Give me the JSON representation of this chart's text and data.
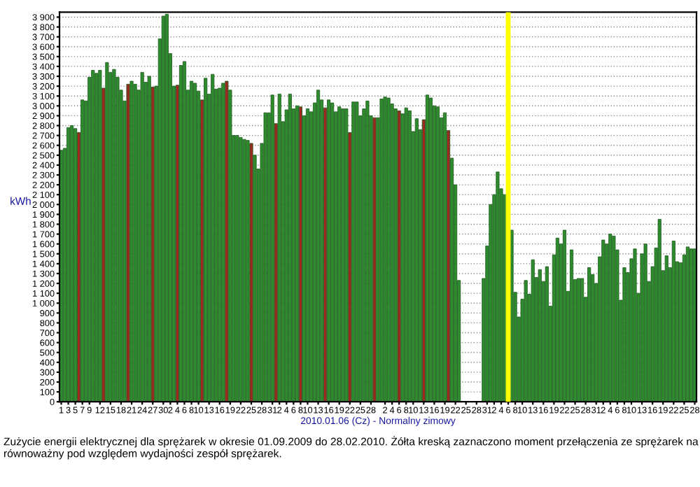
{
  "chart_data": {
    "type": "bar",
    "xlabel": "2010.01.06 (Cz) - Normalny zimowy",
    "ylabel": "kWh",
    "annotations": [
      "Zużycie energii elektrycznej dla sprężarek w okresie 01.09.2009 do 28.02.2010. Żółta kreską zaznaczono moment przełączenia ze sprężarek na równoważny pod względem wydajności zespół sprężarek."
    ],
    "x": [
      "2009-09-01",
      "2009-09-02",
      "2009-09-03",
      "2009-09-04",
      "2009-09-05",
      "2009-09-06",
      "2009-09-07",
      "2009-09-08",
      "2009-09-09",
      "2009-09-10",
      "2009-09-11",
      "2009-09-12",
      "2009-09-13",
      "2009-09-14",
      "2009-09-15",
      "2009-09-16",
      "2009-09-17",
      "2009-09-18",
      "2009-09-19",
      "2009-09-20",
      "2009-09-21",
      "2009-09-22",
      "2009-09-23",
      "2009-09-24",
      "2009-09-25",
      "2009-09-26",
      "2009-09-27",
      "2009-09-28",
      "2009-09-29",
      "2009-09-30",
      "2009-10-01",
      "2009-10-02",
      "2009-10-03",
      "2009-10-04",
      "2009-10-05",
      "2009-10-06",
      "2009-10-07",
      "2009-10-08",
      "2009-10-09",
      "2009-10-10",
      "2009-10-11",
      "2009-10-12",
      "2009-10-13",
      "2009-10-14",
      "2009-10-15",
      "2009-10-16",
      "2009-10-17",
      "2009-10-18",
      "2009-10-19",
      "2009-10-20",
      "2009-10-21",
      "2009-10-22",
      "2009-10-23",
      "2009-10-24",
      "2009-10-25",
      "2009-10-26",
      "2009-10-27",
      "2009-10-28",
      "2009-10-29",
      "2009-10-30",
      "2009-10-31",
      "2009-11-01",
      "2009-11-02",
      "2009-11-03",
      "2009-11-04",
      "2009-11-05",
      "2009-11-06",
      "2009-11-07",
      "2009-11-08",
      "2009-11-09",
      "2009-11-10",
      "2009-11-11",
      "2009-11-12",
      "2009-11-13",
      "2009-11-14",
      "2009-11-15",
      "2009-11-16",
      "2009-11-17",
      "2009-11-18",
      "2009-11-19",
      "2009-11-20",
      "2009-11-21",
      "2009-11-22",
      "2009-11-23",
      "2009-11-24",
      "2009-11-25",
      "2009-11-26",
      "2009-11-27",
      "2009-11-28",
      "2009-11-29",
      "2009-11-30",
      "2009-12-01",
      "2009-12-02",
      "2009-12-03",
      "2009-12-04",
      "2009-12-05",
      "2009-12-06",
      "2009-12-07",
      "2009-12-08",
      "2009-12-09",
      "2009-12-10",
      "2009-12-11",
      "2009-12-12",
      "2009-12-13",
      "2009-12-14",
      "2009-12-15",
      "2009-12-16",
      "2009-12-17",
      "2009-12-18",
      "2009-12-19",
      "2009-12-20",
      "2009-12-21",
      "2009-12-22",
      "2009-12-23",
      "2009-12-24",
      "2009-12-25",
      "2009-12-26",
      "2009-12-27",
      "2009-12-28",
      "2009-12-29",
      "2009-12-30",
      "2009-12-31",
      "2010-01-01",
      "2010-01-02",
      "2010-01-03",
      "2010-01-04",
      "2010-01-05",
      "2010-01-06",
      "2010-01-07",
      "2010-01-08",
      "2010-01-09",
      "2010-01-10",
      "2010-01-11",
      "2010-01-12",
      "2010-01-13",
      "2010-01-14",
      "2010-01-15",
      "2010-01-16",
      "2010-01-17",
      "2010-01-18",
      "2010-01-19",
      "2010-01-20",
      "2010-01-21",
      "2010-01-22",
      "2010-01-23",
      "2010-01-24",
      "2010-01-25",
      "2010-01-26",
      "2010-01-27",
      "2010-01-28",
      "2010-01-29",
      "2010-01-30",
      "2010-01-31",
      "2010-02-01",
      "2010-02-02",
      "2010-02-03",
      "2010-02-04",
      "2010-02-05",
      "2010-02-06",
      "2010-02-07",
      "2010-02-08",
      "2010-02-09",
      "2010-02-10",
      "2010-02-11",
      "2010-02-12",
      "2010-02-13",
      "2010-02-14",
      "2010-02-15",
      "2010-02-16",
      "2010-02-17",
      "2010-02-18",
      "2010-02-19",
      "2010-02-20",
      "2010-02-21",
      "2010-02-22",
      "2010-02-23",
      "2010-02-24",
      "2010-02-25",
      "2010-02-26",
      "2010-02-27",
      "2010-02-28"
    ],
    "values": [
      2550,
      2570,
      2780,
      2800,
      2770,
      2730,
      3060,
      3050,
      3290,
      3360,
      3330,
      3360,
      3180,
      3440,
      3340,
      3370,
      3290,
      3160,
      3050,
      3220,
      3250,
      3220,
      3160,
      3340,
      3240,
      3300,
      3190,
      3200,
      3680,
      3910,
      3930,
      3530,
      3200,
      3210,
      3410,
      3450,
      3160,
      3250,
      3230,
      3150,
      3060,
      3280,
      3120,
      3320,
      3170,
      3180,
      3230,
      3250,
      3160,
      2700,
      2700,
      2680,
      2660,
      2650,
      2620,
      2500,
      2360,
      2620,
      2930,
      2930,
      3110,
      2820,
      3120,
      2840,
      2960,
      3120,
      2970,
      3000,
      2990,
      2900,
      2970,
      2940,
      3030,
      3160,
      3060,
      2980,
      3060,
      3030,
      2940,
      2990,
      2970,
      2970,
      2730,
      3040,
      3040,
      2900,
      2970,
      3050,
      2900,
      2880,
      2880,
      3070,
      3090,
      3080,
      3020,
      2970,
      2950,
      2920,
      2980,
      2950,
      2740,
      2870,
      2760,
      2860,
      3110,
      3080,
      3000,
      2990,
      2880,
      2930,
      2750,
      2470,
      2200,
      1230,
      null,
      null,
      null,
      null,
      null,
      null,
      1250,
      1580,
      2000,
      2100,
      2330,
      2160,
      2100,
      null,
      1740,
      1110,
      860,
      1040,
      1230,
      1090,
      1440,
      1260,
      1340,
      1220,
      1370,
      970,
      1490,
      1660,
      1600,
      1740,
      1120,
      1540,
      1240,
      1250,
      1250,
      1060,
      1360,
      1290,
      1200,
      1470,
      1640,
      1600,
      1700,
      1680,
      1540,
      1030,
      1360,
      1310,
      1450,
      1550,
      1100,
      1500,
      1600,
      1220,
      1370,
      1560,
      1850,
      1330,
      1480,
      1360,
      1630,
      1420,
      1410,
      1490,
      1570,
      1550,
      1550
    ],
    "colors": [
      "#2e8b2e",
      "#2e8b2e",
      "#2e8b2e",
      "#2e8b2e",
      "#2e8b2e",
      "#9b2a1e",
      "#2e8b2e",
      "#2e8b2e",
      "#2e8b2e",
      "#2e8b2e",
      "#2e8b2e",
      "#2e8b2e",
      "#9b2a1e",
      "#2e8b2e",
      "#2e8b2e",
      "#2e8b2e",
      "#2e8b2e",
      "#2e8b2e",
      "#2e8b2e",
      "#9b2a1e",
      "#2e8b2e",
      "#2e8b2e",
      "#2e8b2e",
      "#2e8b2e",
      "#2e8b2e",
      "#2e8b2e",
      "#9b2a1e",
      "#2e8b2e",
      "#2e8b2e",
      "#2e8b2e",
      "#2e8b2e",
      "#2e8b2e",
      "#2e8b2e",
      "#9b2a1e",
      "#2e8b2e",
      "#2e8b2e",
      "#2e8b2e",
      "#2e8b2e",
      "#2e8b2e",
      "#2e8b2e",
      "#9b2a1e",
      "#2e8b2e",
      "#2e8b2e",
      "#2e8b2e",
      "#2e8b2e",
      "#2e8b2e",
      "#2e8b2e",
      "#9b2a1e",
      "#2e8b2e",
      "#2e8b2e",
      "#2e8b2e",
      "#2e8b2e",
      "#2e8b2e",
      "#2e8b2e",
      "#9b2a1e",
      "#2e8b2e",
      "#2e8b2e",
      "#2e8b2e",
      "#2e8b2e",
      "#2e8b2e",
      "#2e8b2e",
      "#9b2a1e",
      "#2e8b2e",
      "#2e8b2e",
      "#2e8b2e",
      "#2e8b2e",
      "#2e8b2e",
      "#2e8b2e",
      "#9b2a1e",
      "#2e8b2e",
      "#2e8b2e",
      "#2e8b2e",
      "#2e8b2e",
      "#2e8b2e",
      "#2e8b2e",
      "#9b2a1e",
      "#2e8b2e",
      "#2e8b2e",
      "#2e8b2e",
      "#2e8b2e",
      "#2e8b2e",
      "#2e8b2e",
      "#9b2a1e",
      "#2e8b2e",
      "#2e8b2e",
      "#2e8b2e",
      "#2e8b2e",
      "#2e8b2e",
      "#2e8b2e",
      "#9b2a1e",
      "#2e8b2e",
      "#2e8b2e",
      "#2e8b2e",
      "#2e8b2e",
      "#2e8b2e",
      "#2e8b2e",
      "#9b2a1e",
      "#2e8b2e",
      "#2e8b2e",
      "#2e8b2e",
      "#2e8b2e",
      "#2e8b2e",
      "#2e8b2e",
      "#9b2a1e",
      "#2e8b2e",
      "#2e8b2e",
      "#2e8b2e",
      "#2e8b2e",
      "#2e8b2e",
      "#2e8b2e",
      "#9b2a1e",
      "#2e8b2e",
      "#2e8b2e",
      "#2e8b2e",
      "#2e8b2e",
      "#2e8b2e",
      "#2e8b2e",
      "#2e8b2e",
      "#2e8b2e",
      "#2e8b2e",
      "#2e8b2e",
      "#2e8b2e",
      "#2e8b2e",
      "#2e8b2e",
      "#2e8b2e",
      "#2e8b2e",
      "#2e8b2e",
      "#2e8b2e",
      "#2e8b2e",
      "#2e8b2e",
      "#2e8b2e",
      "#2e8b2e",
      "#2e8b2e",
      "#2e8b2e",
      "#2e8b2e",
      "#2e8b2e",
      "#2e8b2e",
      "#2e8b2e",
      "#2e8b2e",
      "#2e8b2e",
      "#2e8b2e",
      "#2e8b2e",
      "#2e8b2e",
      "#2e8b2e",
      "#2e8b2e",
      "#2e8b2e",
      "#2e8b2e",
      "#2e8b2e",
      "#2e8b2e",
      "#2e8b2e",
      "#2e8b2e",
      "#2e8b2e",
      "#2e8b2e",
      "#2e8b2e",
      "#2e8b2e",
      "#2e8b2e",
      "#2e8b2e",
      "#2e8b2e",
      "#2e8b2e",
      "#2e8b2e",
      "#2e8b2e",
      "#2e8b2e",
      "#2e8b2e",
      "#2e8b2e",
      "#2e8b2e",
      "#2e8b2e",
      "#2e8b2e",
      "#2e8b2e",
      "#2e8b2e",
      "#2e8b2e",
      "#2e8b2e",
      "#2e8b2e",
      "#2e8b2e",
      "#2e8b2e",
      "#2e8b2e",
      "#2e8b2e",
      "#2e8b2e",
      "#2e8b2e",
      "#2e8b2e",
      "#2e8b2e",
      "#2e8b2e"
    ],
    "xlim": [
      "2009-08-31T12:00",
      "2010-02-28T12:00"
    ],
    "xticks": [
      {
        "value": "2009-09-01",
        "label": "1"
      },
      {
        "value": "2009-09-03",
        "label": "3"
      },
      {
        "value": "2009-09-05",
        "label": "5"
      },
      {
        "value": "2009-09-07",
        "label": "7"
      },
      {
        "value": "2009-09-09",
        "label": "9"
      },
      {
        "value": "2009-09-12",
        "label": "12"
      },
      {
        "value": "2009-09-15",
        "label": "15"
      },
      {
        "value": "2009-09-18",
        "label": "18"
      },
      {
        "value": "2009-09-21",
        "label": "21"
      },
      {
        "value": "2009-09-24",
        "label": "24"
      },
      {
        "value": "2009-09-27",
        "label": "27"
      },
      {
        "value": "2009-09-30",
        "label": "30"
      },
      {
        "value": "2009-10-02",
        "label": "2"
      },
      {
        "value": "2009-10-04",
        "label": "4"
      },
      {
        "value": "2009-10-06",
        "label": "6"
      },
      {
        "value": "2009-10-08",
        "label": "8"
      },
      {
        "value": "2009-10-10",
        "label": "10"
      },
      {
        "value": "2009-10-13",
        "label": "13"
      },
      {
        "value": "2009-10-16",
        "label": "16"
      },
      {
        "value": "2009-10-19",
        "label": "19"
      },
      {
        "value": "2009-10-22",
        "label": "22"
      },
      {
        "value": "2009-10-25",
        "label": "25"
      },
      {
        "value": "2009-10-28",
        "label": "28"
      },
      {
        "value": "2009-10-31",
        "label": "31"
      },
      {
        "value": "2009-11-02",
        "label": "2"
      },
      {
        "value": "2009-11-04",
        "label": "4"
      },
      {
        "value": "2009-11-06",
        "label": "6"
      },
      {
        "value": "2009-11-08",
        "label": "8"
      },
      {
        "value": "2009-11-10",
        "label": "10"
      },
      {
        "value": "2009-11-13",
        "label": "13"
      },
      {
        "value": "2009-11-16",
        "label": "16"
      },
      {
        "value": "2009-11-19",
        "label": "19"
      },
      {
        "value": "2009-11-22",
        "label": "22"
      },
      {
        "value": "2009-11-25",
        "label": "25"
      },
      {
        "value": "2009-11-28",
        "label": "28"
      },
      {
        "value": "2009-12-02",
        "label": "2"
      },
      {
        "value": "2009-12-04",
        "label": "4"
      },
      {
        "value": "2009-12-06",
        "label": "6"
      },
      {
        "value": "2009-12-08",
        "label": "8"
      },
      {
        "value": "2009-12-10",
        "label": "10"
      },
      {
        "value": "2009-12-13",
        "label": "13"
      },
      {
        "value": "2009-12-16",
        "label": "16"
      },
      {
        "value": "2009-12-19",
        "label": "19"
      },
      {
        "value": "2009-12-22",
        "label": "22"
      },
      {
        "value": "2009-12-25",
        "label": "25"
      },
      {
        "value": "2009-12-28",
        "label": "28"
      },
      {
        "value": "2009-12-31",
        "label": "31"
      },
      {
        "value": "2010-01-02",
        "label": "2"
      },
      {
        "value": "2010-01-04",
        "label": "4"
      },
      {
        "value": "2010-01-06",
        "label": "6"
      },
      {
        "value": "2010-01-08",
        "label": "8"
      },
      {
        "value": "2010-01-10",
        "label": "10"
      },
      {
        "value": "2010-01-13",
        "label": "13"
      },
      {
        "value": "2010-01-16",
        "label": "16"
      },
      {
        "value": "2010-01-19",
        "label": "19"
      },
      {
        "value": "2010-01-22",
        "label": "22"
      },
      {
        "value": "2010-01-25",
        "label": "25"
      },
      {
        "value": "2010-01-28",
        "label": "28"
      },
      {
        "value": "2010-01-31",
        "label": "31"
      },
      {
        "value": "2010-02-02",
        "label": "2"
      },
      {
        "value": "2010-02-04",
        "label": "4"
      },
      {
        "value": "2010-02-06",
        "label": "6"
      },
      {
        "value": "2010-02-08",
        "label": "8"
      },
      {
        "value": "2010-02-10",
        "label": "10"
      },
      {
        "value": "2010-02-13",
        "label": "13"
      },
      {
        "value": "2010-02-16",
        "label": "16"
      },
      {
        "value": "2010-02-19",
        "label": "19"
      },
      {
        "value": "2010-02-22",
        "label": "22"
      },
      {
        "value": "2010-02-25",
        "label": "25"
      },
      {
        "value": "2010-02-28",
        "label": "28"
      }
    ],
    "ylim": [
      0,
      3950
    ],
    "yticks": [
      0,
      100,
      200,
      300,
      400,
      500,
      600,
      700,
      800,
      900,
      {
        "value": 1000,
        "label": "1 000"
      },
      {
        "value": 1100,
        "label": "1 100"
      },
      {
        "value": 1200,
        "label": "1 200"
      },
      {
        "value": 1300,
        "label": "1 300"
      },
      {
        "value": 1400,
        "label": "1 400"
      },
      {
        "value": 1500,
        "label": "1 500"
      },
      {
        "value": 1600,
        "label": "1 600"
      },
      {
        "value": 1700,
        "label": "1 700"
      },
      {
        "value": 1800,
        "label": "1 800"
      },
      {
        "value": 1900,
        "label": "1 900"
      },
      {
        "value": 2000,
        "label": "2 000"
      },
      {
        "value": 2100,
        "label": "2 100"
      },
      {
        "value": 2200,
        "label": "2 200"
      },
      {
        "value": 2300,
        "label": "2 300"
      },
      {
        "value": 2400,
        "label": "2 400"
      },
      {
        "value": 2500,
        "label": "2 500"
      },
      {
        "value": 2600,
        "label": "2 600"
      },
      {
        "value": 2700,
        "label": "2 700"
      },
      {
        "value": 2800,
        "label": "2 800"
      },
      {
        "value": 2900,
        "label": "2 900"
      },
      {
        "value": 3000,
        "label": "3 000"
      },
      {
        "value": 3100,
        "label": "3 100"
      },
      {
        "value": 3200,
        "label": "3 200"
      },
      {
        "value": 3300,
        "label": "3 300"
      },
      {
        "value": 3400,
        "label": "3 400"
      },
      {
        "value": 3500,
        "label": "3 500"
      },
      {
        "value": 3600,
        "label": "3 600"
      },
      {
        "value": 3700,
        "label": "3 700"
      },
      {
        "value": 3800,
        "label": "3 800"
      },
      {
        "value": 3900,
        "label": "3 900"
      }
    ],
    "grid": "y",
    "ref_lines": [
      {
        "axis": "x",
        "value": "2010-01-06",
        "color": "#ffff00"
      }
    ]
  }
}
